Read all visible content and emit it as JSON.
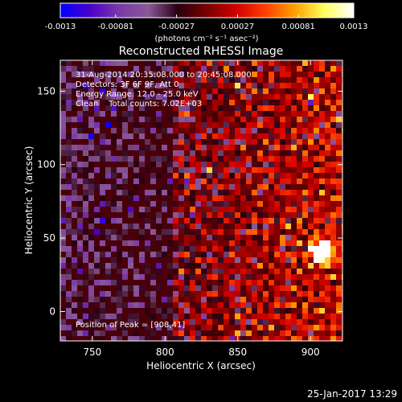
{
  "colorbar": {
    "tick_labels": [
      "-0.0013",
      "-0.00081",
      "-0.00027",
      "0.00027",
      "0.00081",
      "0.0013"
    ],
    "tick_values": [
      -0.0013,
      -0.00081,
      -0.00027,
      0.00027,
      0.00081,
      0.0013
    ],
    "range": [
      -0.0013,
      0.0013
    ],
    "units": "(photons cm⁻² s⁻¹ asec⁻²)",
    "palette": [
      "#0000ff",
      "#4a00c8",
      "#7a3aa8",
      "#8a5898",
      "#2a0010",
      "#7a0000",
      "#d00000",
      "#ff4000",
      "#ffa000",
      "#ffff60",
      "#ffffff"
    ]
  },
  "chart_data": {
    "type": "heatmap",
    "title": "Reconstructed RHESSI Image",
    "xlabel": "Heliocentric X (arcsec)",
    "ylabel": "Heliocentric Y (arcsec)",
    "xlim": [
      728,
      922
    ],
    "ylim": [
      -20,
      171
    ],
    "x_ticks": [
      750,
      800,
      850,
      900
    ],
    "y_ticks": [
      0,
      50,
      100,
      150
    ],
    "peak": [
      908,
      41
    ],
    "annotations": [
      "31-Aug-2014 20:35:08.000 to 20:45:08.000",
      "Detectors: 3F 6F 9F, Att 0",
      "Energy Range: 12.0 - 25.0 keV",
      "Clean    Total counts: 7.02E+03"
    ],
    "peak_label": "Position of Peak = [908,41]"
  },
  "footer": {
    "timestamp": "25-Jan-2017 13:29"
  }
}
